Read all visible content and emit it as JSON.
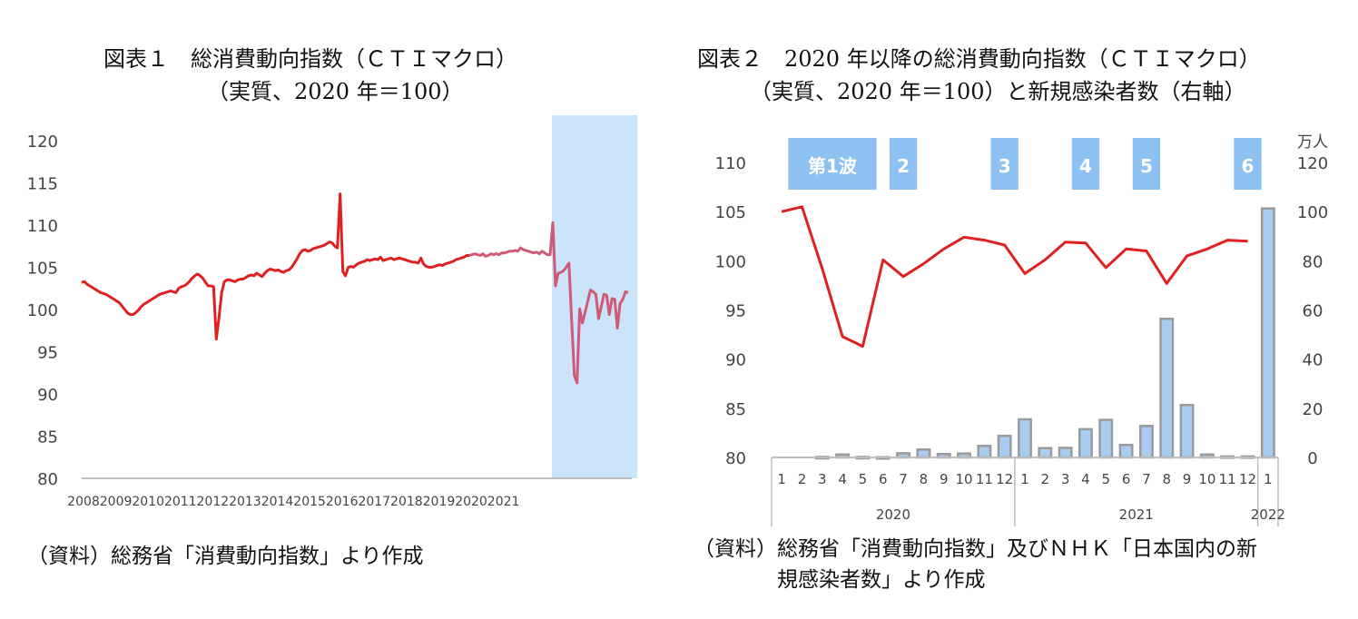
{
  "chart1": {
    "title_line1": "図表１　総消費動向指数（ＣＴＩマクロ）",
    "title_line2": "（実質、2020 年＝100）",
    "source_note": "（資料）総務省「消費動向指数」より作成",
    "highlight_color": "#cce4fa"
  },
  "chart2": {
    "title_line1": "図表２　2020 年以降の総消費動向指数（ＣＴＩマクロ）",
    "title_line2": "（実質、2020 年＝100）と新規感染者数（右軸）",
    "source_note_line1": "（資料）総務省「消費動向指数」及びＮＨＫ「日本国内の新",
    "source_note_line2": "規感染者数」より作成",
    "right_axis_unit": "万人"
  },
  "chart_data": [
    {
      "type": "line",
      "title": "図表１　総消費動向指数（ＣＴＩマクロ）（実質、2020 年＝100）",
      "xlabel": "",
      "ylabel": "",
      "ylim": [
        80,
        120
      ],
      "yticks": [
        "80",
        "85",
        "90",
        "95",
        "100",
        "105",
        "110",
        "115",
        "120"
      ],
      "xticks": [
        "2008",
        "2009",
        "2010",
        "2011",
        "2012",
        "2013",
        "2014",
        "2015",
        "2016",
        "2017",
        "2018",
        "2019",
        "2020",
        "2021"
      ],
      "x_start": "2008-01",
      "highlight_from": "2020-01",
      "color": "#e02020",
      "highlight_line_color": "#cf5a78",
      "values": [
        103.2,
        103.3,
        103.0,
        102.8,
        102.6,
        102.4,
        102.2,
        102.0,
        101.9,
        101.8,
        101.6,
        101.4,
        101.2,
        101.0,
        100.8,
        100.4,
        100.0,
        99.6,
        99.4,
        99.4,
        99.6,
        99.9,
        100.3,
        100.6,
        100.8,
        101.0,
        101.2,
        101.4,
        101.6,
        101.8,
        101.9,
        102.0,
        102.1,
        102.2,
        102.1,
        102.0,
        102.5,
        102.7,
        102.8,
        103.0,
        103.3,
        103.7,
        104.0,
        104.2,
        104.0,
        103.7,
        103.2,
        102.8,
        102.8,
        102.7,
        96.5,
        99.0,
        102.0,
        103.3,
        103.5,
        103.5,
        103.4,
        103.3,
        103.5,
        103.6,
        103.6,
        103.8,
        104.0,
        104.1,
        104.0,
        104.3,
        104.1,
        103.9,
        104.3,
        104.6,
        104.8,
        104.7,
        104.6,
        104.7,
        104.5,
        104.4,
        104.6,
        104.7,
        105.0,
        105.5,
        106.0,
        106.6,
        107.0,
        107.1,
        106.9,
        107.0,
        107.2,
        107.3,
        107.4,
        107.5,
        107.6,
        107.8,
        108.0,
        107.9,
        107.5,
        107.3,
        113.7,
        104.5,
        104.0,
        105.0,
        105.1,
        105.0,
        105.3,
        105.5,
        105.6,
        105.7,
        105.9,
        105.8,
        105.9,
        106.0,
        105.9,
        106.2,
        105.8,
        105.9,
        106.0,
        106.1,
        105.9,
        106.0,
        106.1,
        106.0,
        105.9,
        105.8,
        105.7,
        105.6,
        105.6,
        105.5,
        106.1,
        105.4,
        105.1,
        105.0,
        105.0,
        105.1,
        105.2,
        105.3,
        105.2,
        105.4,
        105.5,
        105.6,
        105.7,
        105.9,
        106.0,
        106.1,
        106.2,
        106.4,
        106.4,
        106.5,
        106.6,
        106.5,
        106.4,
        106.6,
        106.3,
        106.4,
        106.6,
        106.5,
        106.6,
        106.5,
        106.7,
        106.7,
        106.8,
        106.9,
        106.9,
        107.0,
        106.9,
        107.3,
        107.1,
        107.0,
        106.9,
        106.8,
        106.7,
        106.8,
        106.6,
        106.9,
        106.7,
        106.5,
        106.5,
        110.3,
        102.8,
        104.3,
        104.4,
        104.6,
        105.0,
        105.5,
        98.8,
        92.2,
        91.3,
        100.1,
        98.4,
        99.7,
        101.0,
        102.3,
        102.1,
        101.8,
        98.9,
        100.3,
        101.8,
        101.7,
        99.4,
        101.3,
        101.2,
        97.8,
        100.7,
        101.2,
        102.1,
        102.0
      ]
    },
    {
      "type": "bar+line",
      "title": "図表２　2020 年以降の総消費動向指数（ＣＴＩマクロ）（実質、2020 年＝100）と新規感染者数（右軸）",
      "categories": [
        "1",
        "2",
        "3",
        "4",
        "5",
        "6",
        "7",
        "8",
        "9",
        "10",
        "11",
        "12",
        "1",
        "2",
        "3",
        "4",
        "5",
        "6",
        "7",
        "8",
        "9",
        "10",
        "11",
        "12",
        "1"
      ],
      "year_groups": [
        {
          "label": "2020",
          "span": 12
        },
        {
          "label": "2021",
          "span": 12
        },
        {
          "label": "2022",
          "span": 1
        }
      ],
      "ylim_left": [
        80,
        110
      ],
      "yticks_left": [
        "80",
        "85",
        "90",
        "95",
        "100",
        "105",
        "110"
      ],
      "ylim_right": [
        0,
        120
      ],
      "yticks_right": [
        "0",
        "20",
        "40",
        "60",
        "80",
        "100",
        "120"
      ],
      "right_axis_unit": "万人",
      "series": [
        {
          "name": "総消費動向指数",
          "type": "line",
          "axis": "left",
          "color": "#e02020",
          "values": [
            105.0,
            105.5,
            99.2,
            92.3,
            91.3,
            100.1,
            98.4,
            99.7,
            101.2,
            102.4,
            102.1,
            101.6,
            98.7,
            100.1,
            101.9,
            101.8,
            99.3,
            101.2,
            101.0,
            97.7,
            100.5,
            101.2,
            102.1,
            102.0,
            null
          ]
        },
        {
          "name": "新規感染者数",
          "type": "bar",
          "axis": "right",
          "color": "#a8cdf0",
          "border_color": "#9a9a9a",
          "values": [
            0,
            0,
            0.2,
            1.2,
            0.2,
            0.1,
            1.7,
            3.2,
            1.4,
            1.6,
            4.7,
            8.8,
            15.5,
            3.8,
            3.9,
            11.5,
            15.3,
            5.1,
            12.8,
            56.4,
            21.3,
            1.2,
            0.4,
            0.4,
            101.3
          ]
        }
      ],
      "waves": [
        {
          "label": "第1波",
          "start": 1,
          "end": 4
        },
        {
          "label": "2",
          "start": 6,
          "end": 6
        },
        {
          "label": "3",
          "start": 11,
          "end": 11
        },
        {
          "label": "4",
          "start": 15,
          "end": 15
        },
        {
          "label": "5",
          "start": 18,
          "end": 18
        },
        {
          "label": "6",
          "start": 23,
          "end": 23
        }
      ],
      "wave_color": "#8dc1f2"
    }
  ]
}
